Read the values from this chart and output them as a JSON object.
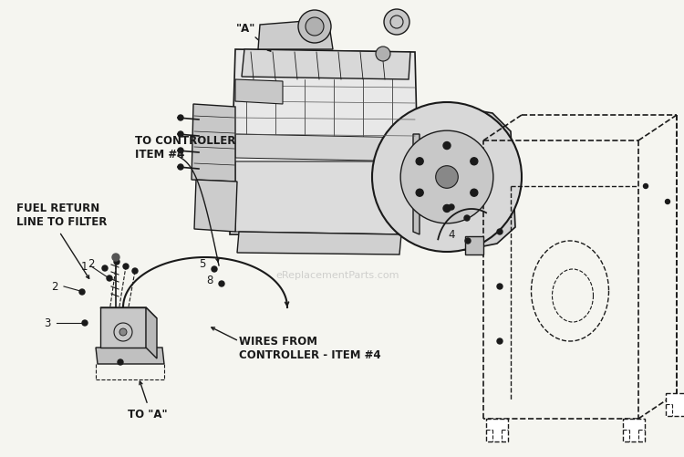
{
  "bg_color": "#f5f5f0",
  "line_color": "#1a1a1a",
  "watermark": "eReplacementParts.com",
  "label_A_top": "\"A\"",
  "label_controller": "TO CONTROLLER\nITEM #4",
  "label_fuel": "FUEL RETURN\nLINE TO FILTER",
  "label_wires": "WIRES FROM\nCONTROLLER - ITEM #4",
  "label_to_a": "TO \"A\"",
  "figw": 7.5,
  "figh": 5.02,
  "dpi": 100,
  "xlim": [
    0,
    750
  ],
  "ylim": [
    0,
    502
  ]
}
